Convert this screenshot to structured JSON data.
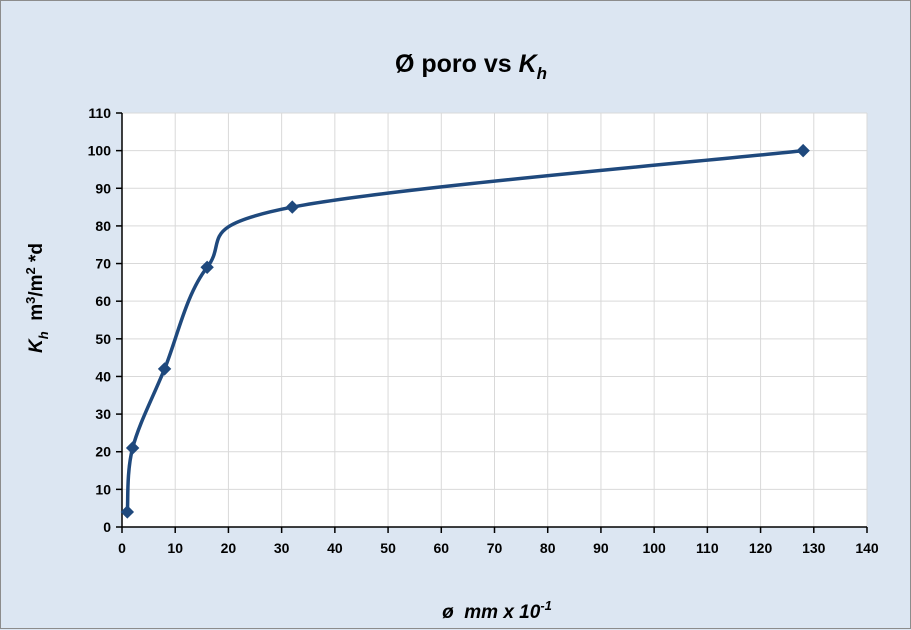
{
  "chart_data": {
    "type": "scatter",
    "title_parts": {
      "prefix": "Ø poro vs ",
      "var": "K",
      "sub": "h"
    },
    "xlabel_parts": {
      "text": "ø  mm x 10",
      "sup": "-1"
    },
    "ylabel_parts": {
      "var": "K",
      "sub": "h",
      "unit_a": "  m",
      "sup1": "3",
      "unit_b": "/m",
      "sup2": "2",
      "unit_c": " *d"
    },
    "xlim": [
      0,
      140
    ],
    "ylim": [
      0,
      110
    ],
    "x_ticks": [
      "0",
      "10",
      "20",
      "30",
      "40",
      "50",
      "60",
      "70",
      "80",
      "90",
      "100",
      "110",
      "120",
      "130",
      "140"
    ],
    "y_ticks": [
      "0",
      "10",
      "20",
      "30",
      "40",
      "50",
      "60",
      "70",
      "80",
      "90",
      "100",
      "110"
    ],
    "grid": true,
    "marker": "diamond",
    "smooth_line": true,
    "series_color": "#1f497d",
    "series": [
      {
        "x": [
          1,
          2,
          8,
          16,
          32,
          128
        ],
        "y": [
          4,
          21,
          42,
          69,
          85,
          100
        ]
      }
    ]
  },
  "colors": {
    "background": "#dce6f2",
    "plot_area": "#ffffff",
    "grid": "#d9d9d9",
    "axis": "#000000"
  }
}
